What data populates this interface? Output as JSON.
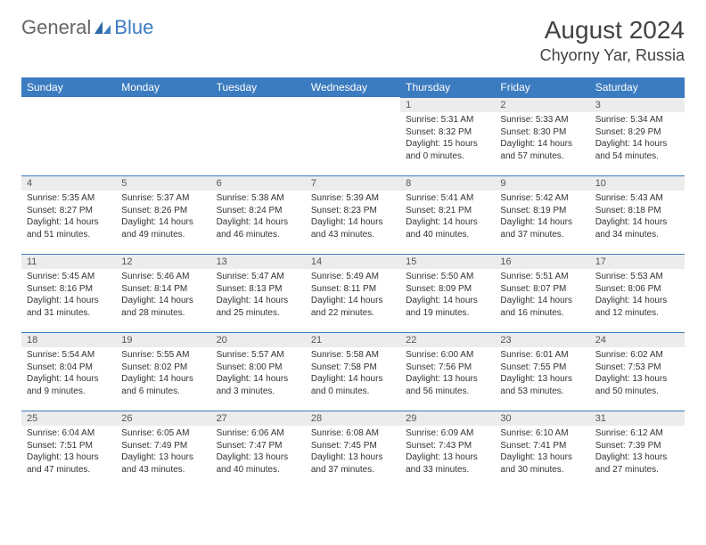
{
  "brand": {
    "part1": "General",
    "part2": "Blue"
  },
  "title": {
    "month": "August 2024",
    "location": "Chyorny Yar, Russia"
  },
  "colors": {
    "accent": "#3b7bbf",
    "header_text": "#ffffff",
    "daynum_bg": "#ececec",
    "text": "#333333"
  },
  "day_labels": [
    "Sunday",
    "Monday",
    "Tuesday",
    "Wednesday",
    "Thursday",
    "Friday",
    "Saturday"
  ],
  "weeks": [
    [
      null,
      null,
      null,
      null,
      {
        "n": "1",
        "sr": "Sunrise: 5:31 AM",
        "ss": "Sunset: 8:32 PM",
        "dl": "Daylight: 15 hours and 0 minutes."
      },
      {
        "n": "2",
        "sr": "Sunrise: 5:33 AM",
        "ss": "Sunset: 8:30 PM",
        "dl": "Daylight: 14 hours and 57 minutes."
      },
      {
        "n": "3",
        "sr": "Sunrise: 5:34 AM",
        "ss": "Sunset: 8:29 PM",
        "dl": "Daylight: 14 hours and 54 minutes."
      }
    ],
    [
      {
        "n": "4",
        "sr": "Sunrise: 5:35 AM",
        "ss": "Sunset: 8:27 PM",
        "dl": "Daylight: 14 hours and 51 minutes."
      },
      {
        "n": "5",
        "sr": "Sunrise: 5:37 AM",
        "ss": "Sunset: 8:26 PM",
        "dl": "Daylight: 14 hours and 49 minutes."
      },
      {
        "n": "6",
        "sr": "Sunrise: 5:38 AM",
        "ss": "Sunset: 8:24 PM",
        "dl": "Daylight: 14 hours and 46 minutes."
      },
      {
        "n": "7",
        "sr": "Sunrise: 5:39 AM",
        "ss": "Sunset: 8:23 PM",
        "dl": "Daylight: 14 hours and 43 minutes."
      },
      {
        "n": "8",
        "sr": "Sunrise: 5:41 AM",
        "ss": "Sunset: 8:21 PM",
        "dl": "Daylight: 14 hours and 40 minutes."
      },
      {
        "n": "9",
        "sr": "Sunrise: 5:42 AM",
        "ss": "Sunset: 8:19 PM",
        "dl": "Daylight: 14 hours and 37 minutes."
      },
      {
        "n": "10",
        "sr": "Sunrise: 5:43 AM",
        "ss": "Sunset: 8:18 PM",
        "dl": "Daylight: 14 hours and 34 minutes."
      }
    ],
    [
      {
        "n": "11",
        "sr": "Sunrise: 5:45 AM",
        "ss": "Sunset: 8:16 PM",
        "dl": "Daylight: 14 hours and 31 minutes."
      },
      {
        "n": "12",
        "sr": "Sunrise: 5:46 AM",
        "ss": "Sunset: 8:14 PM",
        "dl": "Daylight: 14 hours and 28 minutes."
      },
      {
        "n": "13",
        "sr": "Sunrise: 5:47 AM",
        "ss": "Sunset: 8:13 PM",
        "dl": "Daylight: 14 hours and 25 minutes."
      },
      {
        "n": "14",
        "sr": "Sunrise: 5:49 AM",
        "ss": "Sunset: 8:11 PM",
        "dl": "Daylight: 14 hours and 22 minutes."
      },
      {
        "n": "15",
        "sr": "Sunrise: 5:50 AM",
        "ss": "Sunset: 8:09 PM",
        "dl": "Daylight: 14 hours and 19 minutes."
      },
      {
        "n": "16",
        "sr": "Sunrise: 5:51 AM",
        "ss": "Sunset: 8:07 PM",
        "dl": "Daylight: 14 hours and 16 minutes."
      },
      {
        "n": "17",
        "sr": "Sunrise: 5:53 AM",
        "ss": "Sunset: 8:06 PM",
        "dl": "Daylight: 14 hours and 12 minutes."
      }
    ],
    [
      {
        "n": "18",
        "sr": "Sunrise: 5:54 AM",
        "ss": "Sunset: 8:04 PM",
        "dl": "Daylight: 14 hours and 9 minutes."
      },
      {
        "n": "19",
        "sr": "Sunrise: 5:55 AM",
        "ss": "Sunset: 8:02 PM",
        "dl": "Daylight: 14 hours and 6 minutes."
      },
      {
        "n": "20",
        "sr": "Sunrise: 5:57 AM",
        "ss": "Sunset: 8:00 PM",
        "dl": "Daylight: 14 hours and 3 minutes."
      },
      {
        "n": "21",
        "sr": "Sunrise: 5:58 AM",
        "ss": "Sunset: 7:58 PM",
        "dl": "Daylight: 14 hours and 0 minutes."
      },
      {
        "n": "22",
        "sr": "Sunrise: 6:00 AM",
        "ss": "Sunset: 7:56 PM",
        "dl": "Daylight: 13 hours and 56 minutes."
      },
      {
        "n": "23",
        "sr": "Sunrise: 6:01 AM",
        "ss": "Sunset: 7:55 PM",
        "dl": "Daylight: 13 hours and 53 minutes."
      },
      {
        "n": "24",
        "sr": "Sunrise: 6:02 AM",
        "ss": "Sunset: 7:53 PM",
        "dl": "Daylight: 13 hours and 50 minutes."
      }
    ],
    [
      {
        "n": "25",
        "sr": "Sunrise: 6:04 AM",
        "ss": "Sunset: 7:51 PM",
        "dl": "Daylight: 13 hours and 47 minutes."
      },
      {
        "n": "26",
        "sr": "Sunrise: 6:05 AM",
        "ss": "Sunset: 7:49 PM",
        "dl": "Daylight: 13 hours and 43 minutes."
      },
      {
        "n": "27",
        "sr": "Sunrise: 6:06 AM",
        "ss": "Sunset: 7:47 PM",
        "dl": "Daylight: 13 hours and 40 minutes."
      },
      {
        "n": "28",
        "sr": "Sunrise: 6:08 AM",
        "ss": "Sunset: 7:45 PM",
        "dl": "Daylight: 13 hours and 37 minutes."
      },
      {
        "n": "29",
        "sr": "Sunrise: 6:09 AM",
        "ss": "Sunset: 7:43 PM",
        "dl": "Daylight: 13 hours and 33 minutes."
      },
      {
        "n": "30",
        "sr": "Sunrise: 6:10 AM",
        "ss": "Sunset: 7:41 PM",
        "dl": "Daylight: 13 hours and 30 minutes."
      },
      {
        "n": "31",
        "sr": "Sunrise: 6:12 AM",
        "ss": "Sunset: 7:39 PM",
        "dl": "Daylight: 13 hours and 27 minutes."
      }
    ]
  ]
}
